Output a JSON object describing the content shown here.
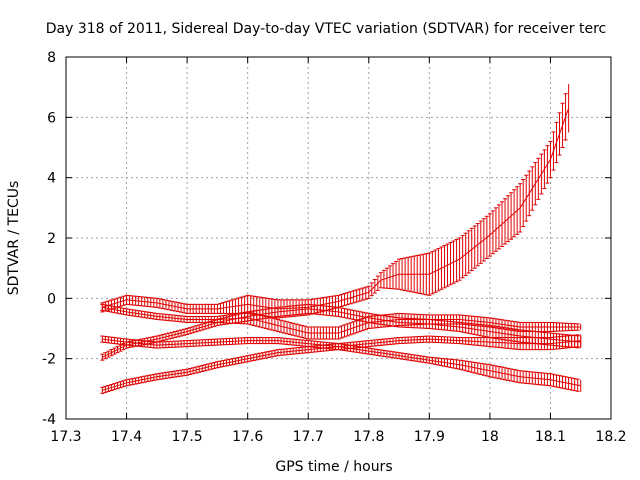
{
  "chart_data": {
    "type": "line",
    "title": "Day 318 of 2011, Sidereal Day-to-day VTEC variation (SDTVAR) for receiver terc",
    "xlabel": "GPS time / hours",
    "ylabel": "SDTVAR / TECUs",
    "xlim": [
      17.3,
      18.2
    ],
    "ylim": [
      -4,
      8
    ],
    "xticks": [
      "17.3",
      "17.4",
      "17.5",
      "17.6",
      "17.7",
      "17.8",
      "17.9",
      "18",
      "18.1",
      "18.2"
    ],
    "yticks": [
      "-4",
      "-2",
      "0",
      "2",
      "4",
      "6",
      "8"
    ],
    "grid": true,
    "error_bars": true,
    "color": "#e00000",
    "series": [
      {
        "name": "series-1",
        "x": [
          17.36,
          17.4,
          17.45,
          17.5,
          17.55,
          17.6,
          17.65,
          17.7,
          17.75,
          17.8,
          17.82,
          17.85,
          17.9,
          17.95,
          18.0,
          18.05,
          18.1,
          18.13
        ],
        "y": [
          -0.3,
          -0.05,
          -0.15,
          -0.35,
          -0.35,
          -0.2,
          -0.35,
          -0.3,
          -0.1,
          0.2,
          0.6,
          0.8,
          0.8,
          1.3,
          2.1,
          3.0,
          4.6,
          6.3
        ],
        "err": [
          0.15,
          0.15,
          0.15,
          0.15,
          0.15,
          0.3,
          0.3,
          0.25,
          0.2,
          0.2,
          0.25,
          0.5,
          0.7,
          0.7,
          0.7,
          0.8,
          0.6,
          0.8
        ]
      },
      {
        "name": "series-2",
        "x": [
          17.36,
          17.4,
          17.45,
          17.5,
          17.55,
          17.6,
          17.65,
          17.7,
          17.75,
          17.8,
          17.85,
          17.9,
          17.95,
          18.0,
          18.05,
          18.1,
          18.15
        ],
        "y": [
          -0.3,
          -0.45,
          -0.6,
          -0.7,
          -0.7,
          -0.65,
          -0.9,
          -1.15,
          -1.15,
          -0.8,
          -0.7,
          -0.7,
          -0.7,
          -0.8,
          -0.95,
          -0.95,
          -0.95
        ],
        "err": [
          0.1,
          0.1,
          0.1,
          0.1,
          0.1,
          0.2,
          0.2,
          0.2,
          0.2,
          0.2,
          0.2,
          0.15,
          0.15,
          0.15,
          0.15,
          0.15,
          0.1
        ]
      },
      {
        "name": "series-3",
        "x": [
          17.36,
          17.4,
          17.45,
          17.5,
          17.55,
          17.6,
          17.65,
          17.7,
          17.75,
          17.8,
          17.85,
          17.9,
          17.95,
          18.0,
          18.05,
          18.1,
          18.15
        ],
        "y": [
          -1.95,
          -1.55,
          -1.35,
          -1.1,
          -0.8,
          -0.6,
          -0.45,
          -0.35,
          -0.45,
          -0.65,
          -0.8,
          -0.85,
          -0.95,
          -1.1,
          -1.25,
          -1.35,
          -1.45
        ],
        "err": [
          0.1,
          0.1,
          0.1,
          0.1,
          0.1,
          0.15,
          0.15,
          0.15,
          0.15,
          0.15,
          0.15,
          0.15,
          0.15,
          0.2,
          0.2,
          0.2,
          0.2
        ]
      },
      {
        "name": "series-4",
        "x": [
          17.36,
          17.4,
          17.45,
          17.5,
          17.55,
          17.6,
          17.65,
          17.7,
          17.75,
          17.8,
          17.85,
          17.9,
          17.95,
          18.0,
          18.05,
          18.1,
          18.15
        ],
        "y": [
          -1.35,
          -1.45,
          -1.55,
          -1.5,
          -1.45,
          -1.4,
          -1.4,
          -1.5,
          -1.6,
          -1.5,
          -1.4,
          -1.35,
          -1.4,
          -1.45,
          -1.5,
          -1.5,
          -1.4
        ],
        "err": [
          0.1,
          0.1,
          0.1,
          0.1,
          0.1,
          0.1,
          0.1,
          0.1,
          0.1,
          0.1,
          0.1,
          0.1,
          0.1,
          0.15,
          0.2,
          0.2,
          0.2
        ]
      },
      {
        "name": "series-5",
        "x": [
          17.36,
          17.4,
          17.45,
          17.5,
          17.55,
          17.6,
          17.65,
          17.7,
          17.75,
          17.8,
          17.85,
          17.9,
          17.95,
          18.0,
          18.05,
          18.1,
          18.15
        ],
        "y": [
          -3.05,
          -2.8,
          -2.6,
          -2.45,
          -2.2,
          -2.0,
          -1.8,
          -1.7,
          -1.6,
          -1.75,
          -1.9,
          -2.05,
          -2.2,
          -2.4,
          -2.6,
          -2.7,
          -2.9
        ],
        "err": [
          0.1,
          0.1,
          0.1,
          0.1,
          0.1,
          0.1,
          0.1,
          0.1,
          0.1,
          0.1,
          0.1,
          0.1,
          0.15,
          0.2,
          0.2,
          0.2,
          0.2
        ]
      }
    ]
  }
}
